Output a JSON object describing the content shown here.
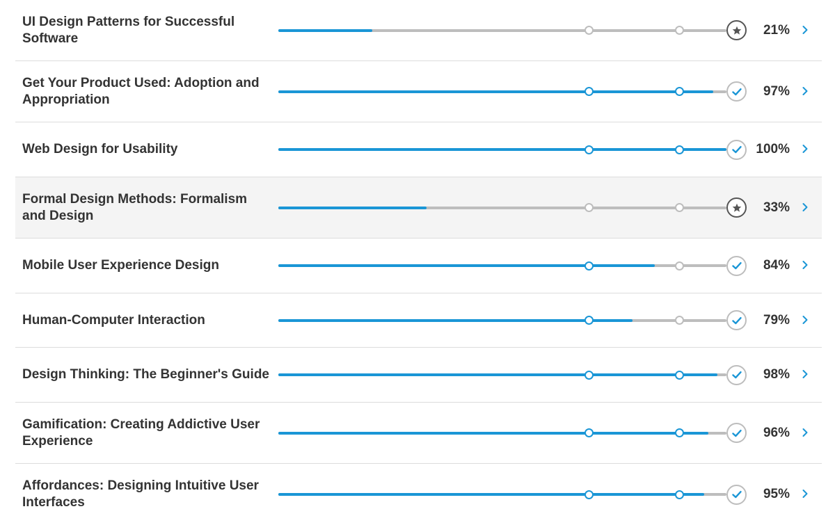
{
  "colors": {
    "progress": "#1a96d6",
    "track": "#bdbdbd",
    "chevron": "#1a96d6",
    "star": "#555555"
  },
  "milestones": [
    0.694,
    0.895
  ],
  "courses": [
    {
      "title": "UI Design Patterns for Successful Software",
      "progress": 0.21,
      "percent_label": "21%",
      "status_icon": "star-icon"
    },
    {
      "title": "Get Your Product Used: Adoption and Appropriation",
      "progress": 0.97,
      "percent_label": "97%",
      "status_icon": "checkmark-icon"
    },
    {
      "title": "Web Design for Usability",
      "progress": 1.0,
      "percent_label": "100%",
      "status_icon": "checkmark-icon"
    },
    {
      "title": "Formal Design Methods: Formalism and Design",
      "progress": 0.33,
      "percent_label": "33%",
      "status_icon": "star-icon",
      "highlighted": true
    },
    {
      "title": "Mobile User Experience Design",
      "progress": 0.84,
      "percent_label": "84%",
      "status_icon": "checkmark-icon"
    },
    {
      "title": "Human-Computer Interaction",
      "progress": 0.79,
      "percent_label": "79%",
      "status_icon": "checkmark-icon"
    },
    {
      "title": "Design Thinking: The Beginner's Guide",
      "progress": 0.98,
      "percent_label": "98%",
      "status_icon": "checkmark-icon"
    },
    {
      "title": "Gamification: Creating Addictive User Experience",
      "progress": 0.96,
      "percent_label": "96%",
      "status_icon": "checkmark-icon"
    },
    {
      "title": "Affordances: Designing Intuitive User Interfaces",
      "progress": 0.95,
      "percent_label": "95%",
      "status_icon": "checkmark-icon"
    }
  ]
}
